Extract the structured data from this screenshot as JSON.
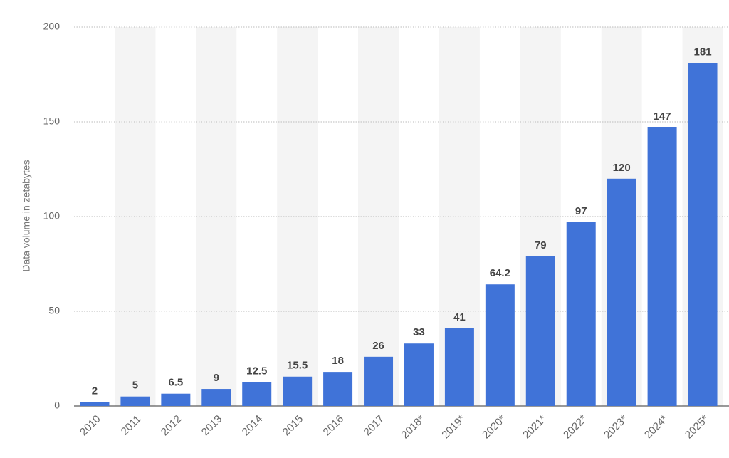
{
  "chart_data": {
    "type": "bar",
    "y_label": "Data volume in zetabytes",
    "categories": [
      "2010",
      "2011",
      "2012",
      "2013",
      "2014",
      "2015",
      "2016",
      "2017",
      "2018*",
      "2019*",
      "2020*",
      "2021*",
      "2022*",
      "2023*",
      "2024*",
      "2025*"
    ],
    "values": [
      2,
      5,
      6.5,
      9,
      12.5,
      15.5,
      18,
      26,
      33,
      41,
      64.2,
      79,
      97,
      120,
      147,
      181
    ],
    "color": "#4073d8",
    "ylim": [
      0,
      200
    ],
    "yticks": [
      0,
      50,
      100,
      150,
      200
    ],
    "grid": true
  }
}
